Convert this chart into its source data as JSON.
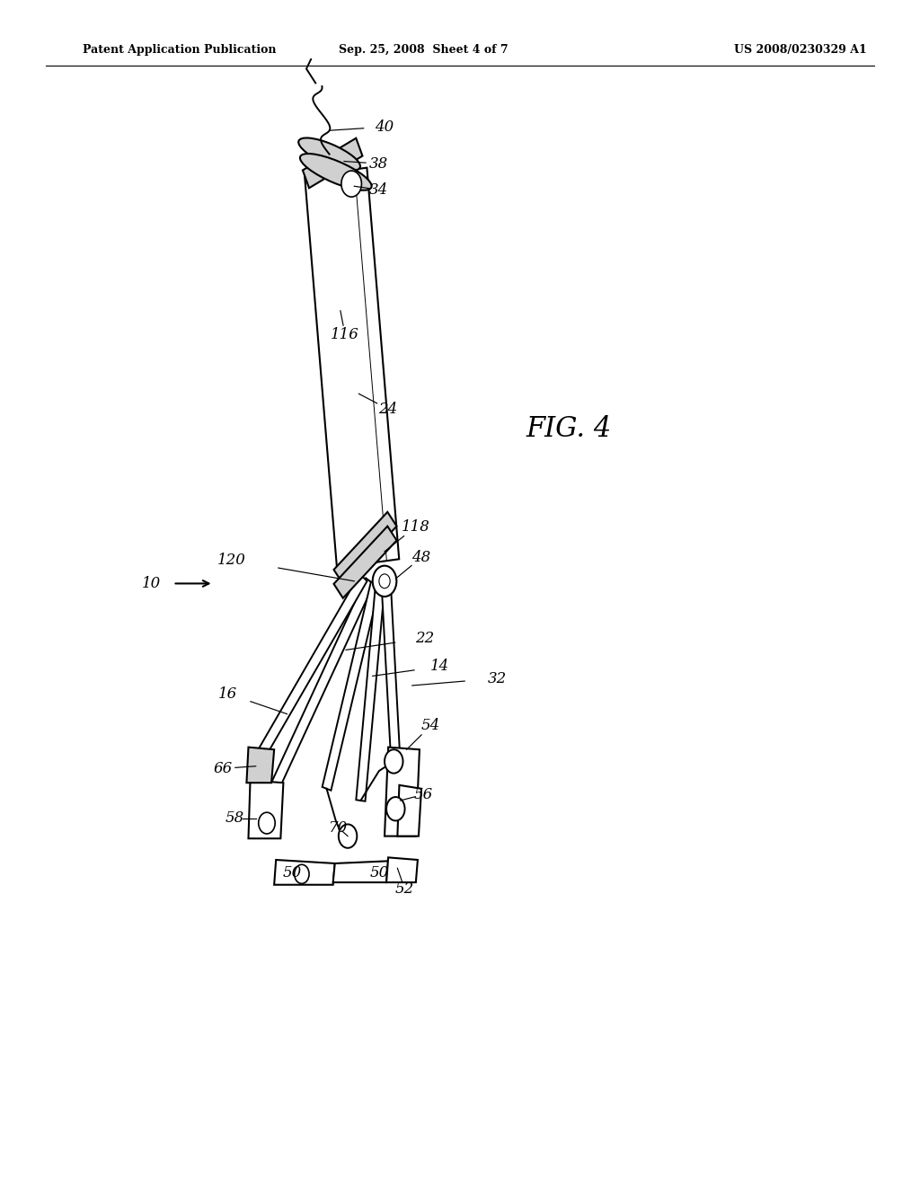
{
  "bg_color": "#ffffff",
  "header_left": "Patent Application Publication",
  "header_center": "Sep. 25, 2008  Sheet 4 of 7",
  "header_right": "US 2008/0230329 A1",
  "fig_label": "FIG. 4",
  "gray_fill": "#d0d0d0",
  "white_fill": "#ffffff",
  "header_fontsize": 9,
  "label_fontsize": 12,
  "fig_label_fontsize": 22
}
